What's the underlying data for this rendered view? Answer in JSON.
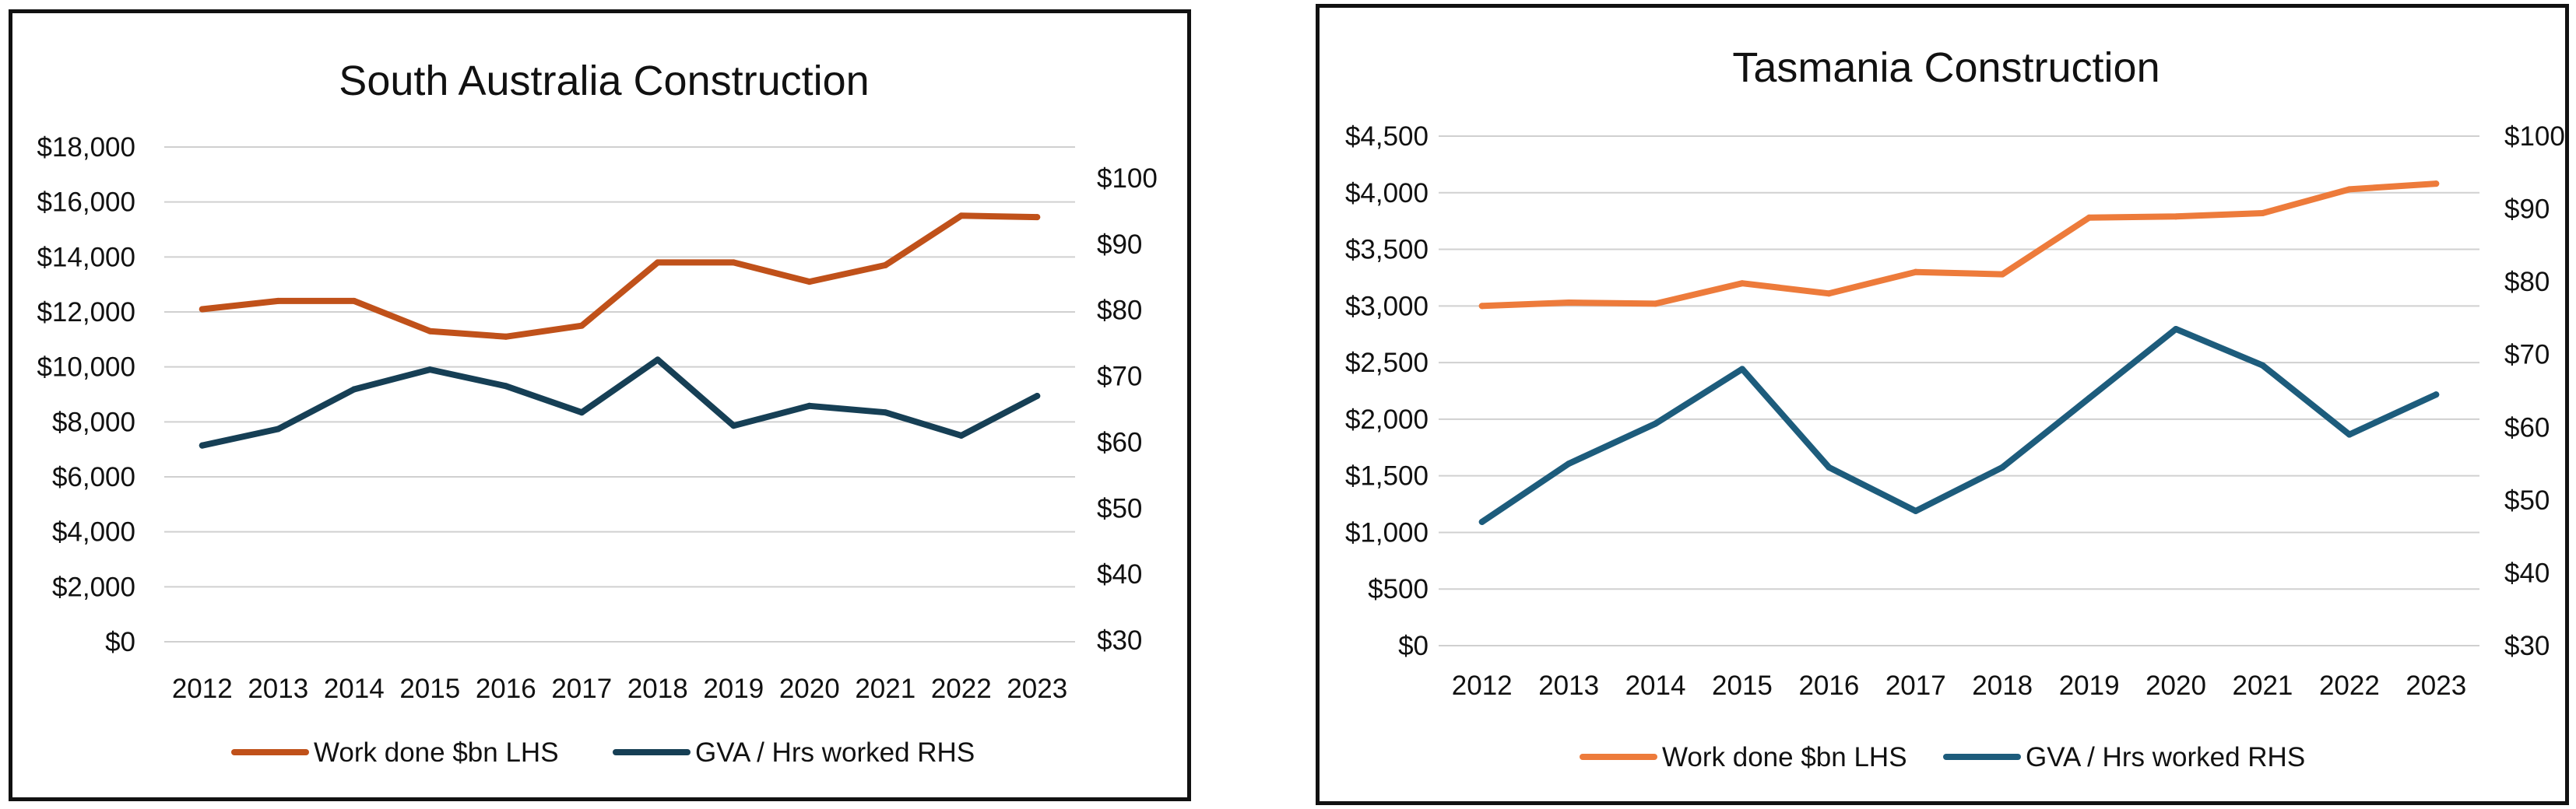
{
  "chart_data": [
    {
      "type": "line",
      "title": "South Australia Construction",
      "categories": [
        "2012",
        "2013",
        "2014",
        "2015",
        "2016",
        "2017",
        "2018",
        "2019",
        "2020",
        "2021",
        "2022",
        "2023"
      ],
      "y_left": {
        "ticks": [
          "$0",
          "$2,000",
          "$4,000",
          "$6,000",
          "$8,000",
          "$10,000",
          "$12,000",
          "$14,000",
          "$16,000",
          "$18,000"
        ],
        "range": [
          0,
          18000
        ]
      },
      "y_right": {
        "ticks": [
          "$30",
          "$40",
          "$50",
          "$60",
          "$70",
          "$80",
          "$90",
          "$100"
        ],
        "range": [
          30,
          100
        ]
      },
      "series": [
        {
          "name": "Work done $bn LHS",
          "axis": "left",
          "color": "#c0511a",
          "values": [
            12100,
            12400,
            12400,
            11300,
            11100,
            11500,
            13800,
            13800,
            13100,
            13700,
            15500,
            15450
          ]
        },
        {
          "name": "GVA / Hrs worked RHS",
          "axis": "right",
          "color": "#163f55",
          "values": [
            59.5,
            62.0,
            68.0,
            71.0,
            68.5,
            64.5,
            72.5,
            62.5,
            65.5,
            64.5,
            61.0,
            67.0
          ]
        }
      ],
      "grid": true,
      "legend_position": "bottom"
    },
    {
      "type": "line",
      "title": "Tasmania Construction",
      "categories": [
        "2012",
        "2013",
        "2014",
        "2015",
        "2016",
        "2017",
        "2018",
        "2019",
        "2020",
        "2021",
        "2022",
        "2023"
      ],
      "y_left": {
        "ticks": [
          "$0",
          "$500",
          "$1,000",
          "$1,500",
          "$2,000",
          "$2,500",
          "$3,000",
          "$3,500",
          "$4,000",
          "$4,500"
        ],
        "range": [
          0,
          4500
        ]
      },
      "y_right": {
        "ticks": [
          "$30",
          "$40",
          "$50",
          "$60",
          "$70",
          "$80",
          "$90",
          "$100"
        ],
        "range": [
          30,
          100
        ]
      },
      "series": [
        {
          "name": "Work done $bn LHS",
          "axis": "left",
          "color": "#ed7b3b",
          "values": [
            3000,
            3030,
            3020,
            3200,
            3110,
            3300,
            3280,
            3780,
            3790,
            3820,
            4030,
            4080
          ]
        },
        {
          "name": "GVA / Hrs worked RHS",
          "axis": "right",
          "color": "#1d5c7c",
          "values": [
            47.0,
            55.0,
            60.5,
            68.0,
            54.5,
            48.5,
            54.5,
            64.0,
            73.5,
            68.5,
            59.0,
            64.5
          ]
        }
      ],
      "grid": true,
      "legend_position": "bottom"
    }
  ]
}
